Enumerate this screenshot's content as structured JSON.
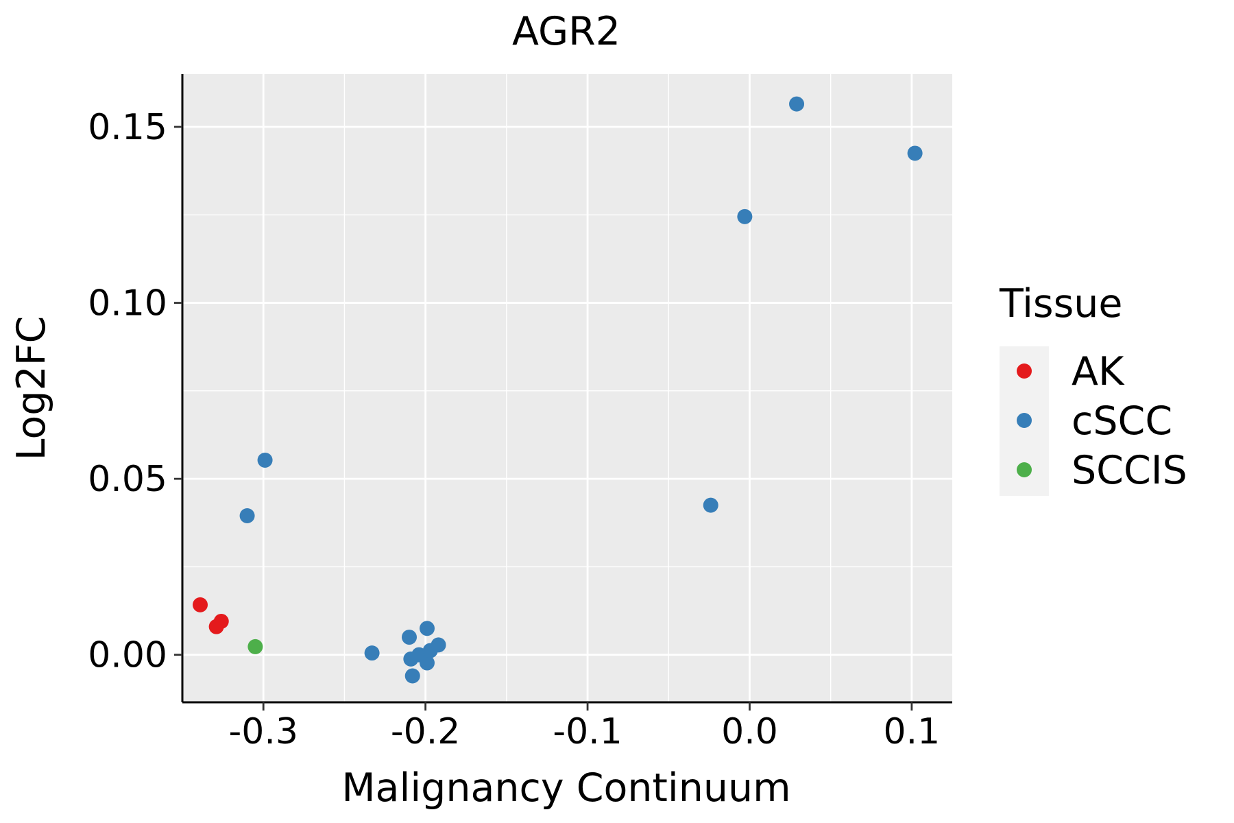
{
  "chart_data": {
    "type": "scatter",
    "title": "AGR2",
    "xlabel": "Malignancy Continuum",
    "ylabel": "Log2FC",
    "xlim": [
      -0.35,
      0.125
    ],
    "ylim": [
      -0.0135,
      0.165
    ],
    "x_ticks": [
      -0.3,
      -0.2,
      -0.1,
      0.0,
      0.1
    ],
    "x_tick_labels": [
      "-0.3",
      "-0.2",
      "-0.1",
      "0.0",
      "0.1"
    ],
    "y_ticks": [
      0.0,
      0.05,
      0.1,
      0.15
    ],
    "y_tick_labels": [
      "0.00",
      "0.05",
      "0.10",
      "0.15"
    ],
    "x_minor_ticks": [
      -0.35,
      -0.25,
      -0.15,
      -0.05,
      0.05
    ],
    "y_minor_ticks": [
      0.025,
      0.075,
      0.125
    ],
    "grid": true,
    "legend": {
      "title": "Tissue",
      "position": "right",
      "entries": [
        {
          "label": "AK",
          "color": "#E41A1C"
        },
        {
          "label": "cSCC",
          "color": "#377EB8"
        },
        {
          "label": "SCCIS",
          "color": "#4DAF4A"
        }
      ]
    },
    "series": [
      {
        "name": "AK",
        "color": "#E41A1C",
        "points": [
          {
            "x": -0.339,
            "y": 0.0142
          },
          {
            "x": -0.326,
            "y": 0.0095
          },
          {
            "x": -0.329,
            "y": 0.008
          }
        ]
      },
      {
        "name": "cSCC",
        "color": "#377EB8",
        "points": [
          {
            "x": -0.299,
            "y": 0.0553
          },
          {
            "x": -0.31,
            "y": 0.0395
          },
          {
            "x": -0.233,
            "y": 0.0005
          },
          {
            "x": -0.21,
            "y": 0.005
          },
          {
            "x": -0.209,
            "y": -0.0012
          },
          {
            "x": -0.208,
            "y": -0.006
          },
          {
            "x": -0.204,
            "y": 0.0
          },
          {
            "x": -0.199,
            "y": 0.0075
          },
          {
            "x": -0.199,
            "y": -0.0023
          },
          {
            "x": -0.197,
            "y": 0.0012
          },
          {
            "x": -0.192,
            "y": 0.0028
          },
          {
            "x": -0.024,
            "y": 0.0425
          },
          {
            "x": -0.003,
            "y": 0.1245
          },
          {
            "x": 0.029,
            "y": 0.1565
          },
          {
            "x": 0.102,
            "y": 0.1425
          }
        ]
      },
      {
        "name": "SCCIS",
        "color": "#4DAF4A",
        "points": [
          {
            "x": -0.305,
            "y": 0.0023
          }
        ]
      }
    ],
    "colors": {
      "panel_background": "#EBEBEB",
      "grid": "#FFFFFF",
      "axis": "#000000",
      "legend_key_background": "#F2F2F2"
    }
  }
}
